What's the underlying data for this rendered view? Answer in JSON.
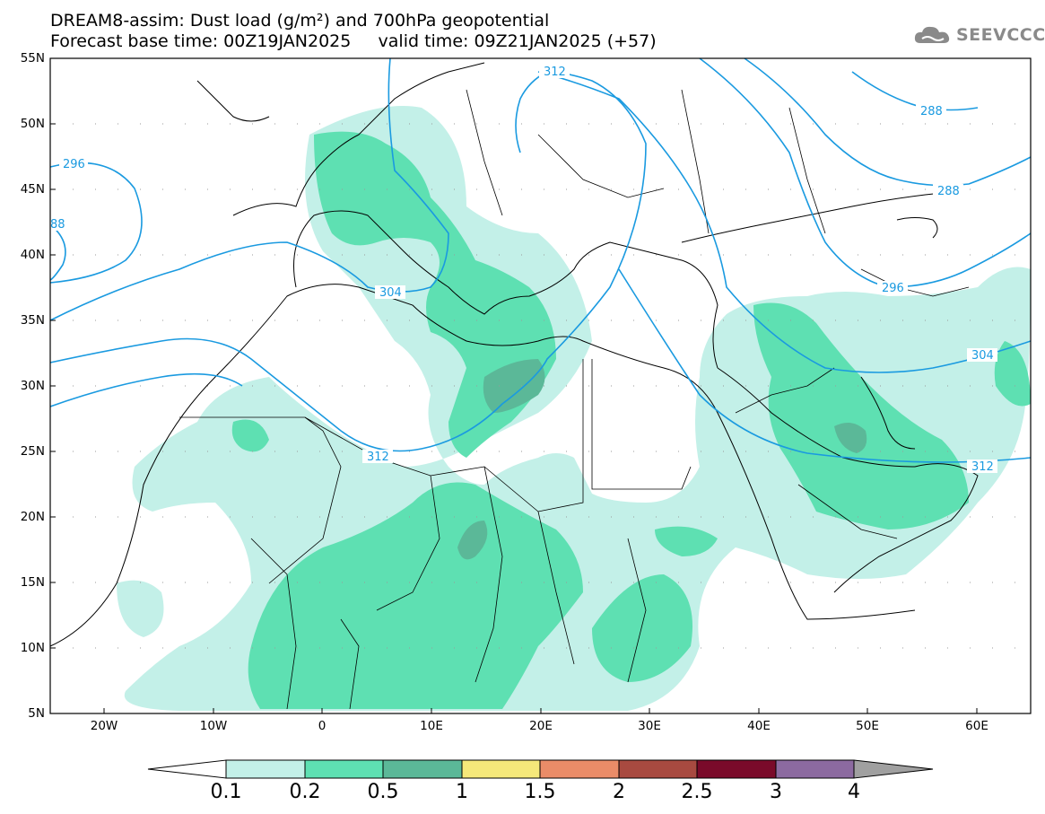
{
  "header": {
    "title_line1": "DREAM8-assim: Dust load (g/m²) and 700hPa geopotential",
    "title_line2": "Forecast base time: 00Z19JAN2025     valid time: 09Z21JAN2025 (+57)"
  },
  "logo": {
    "text": "SEEVCCC",
    "icon": "cloud-logo-icon"
  },
  "axes": {
    "lat_labels": [
      "55N",
      "50N",
      "45N",
      "40N",
      "35N",
      "30N",
      "25N",
      "20N",
      "15N",
      "10N",
      "5N"
    ],
    "lon_labels": [
      "20W",
      "10W",
      "0",
      "10E",
      "20E",
      "30E",
      "40E",
      "50E",
      "60E"
    ]
  },
  "contours": {
    "labels": [
      "296",
      "88",
      "304",
      "312",
      "312",
      "288",
      "288",
      "296",
      "304",
      "312"
    ],
    "color": "#1a9ae0"
  },
  "colorbar": {
    "labels": [
      "0.1",
      "0.2",
      "0.5",
      "1",
      "1.5",
      "2",
      "2.5",
      "3",
      "4"
    ],
    "colors": [
      "#c3f0e8",
      "#5ee0b2",
      "#5bb898",
      "#f5e87a",
      "#ea8c68",
      "#a84a40",
      "#7a0a2a",
      "#8c6aa0"
    ]
  },
  "palette": {
    "dust_light": "#c3f0e8",
    "dust_mid": "#5ee0b2",
    "dust_dark": "#5bb898",
    "contour": "#1a9ae0"
  }
}
